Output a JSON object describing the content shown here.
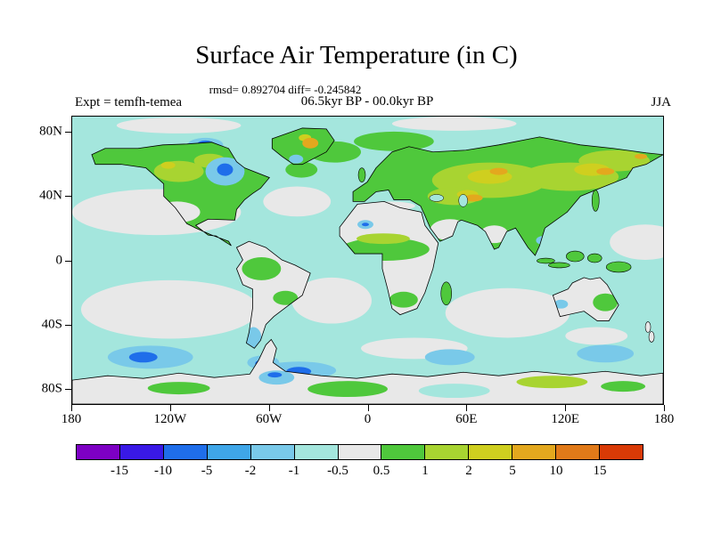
{
  "chart_data": {
    "type": "heatmap",
    "title": "Surface Air Temperature (in C)",
    "stats_line": "rmsd= 0.892704 diff= -0.245842",
    "subtitle": "06.5kyr BP - 00.0kyr BP",
    "left_annotation": "Expt = temfh-temea",
    "right_annotation": "JJA",
    "projection": "equirectangular",
    "x_axis_unit": "longitude",
    "y_axis_unit": "latitude",
    "x_ticks": [
      {
        "label": "180",
        "lon": -180
      },
      {
        "label": "120W",
        "lon": -120
      },
      {
        "label": "60W",
        "lon": -60
      },
      {
        "label": "0",
        "lon": 0
      },
      {
        "label": "60E",
        "lon": 60
      },
      {
        "label": "120E",
        "lon": 120
      },
      {
        "label": "180",
        "lon": 180
      }
    ],
    "y_ticks": [
      {
        "label": "80N",
        "lat": 80
      },
      {
        "label": "40N",
        "lat": 40
      },
      {
        "label": "0",
        "lat": 0
      },
      {
        "label": "40S",
        "lat": -40
      },
      {
        "label": "80S",
        "lat": -80
      }
    ],
    "colorbar": {
      "units": "C",
      "levels": [
        -15,
        -10,
        -5,
        -2,
        -1,
        -0.5,
        0.5,
        1,
        2,
        5,
        10,
        15
      ],
      "labels": [
        "-15",
        "-10",
        "-5",
        "-2",
        "-1",
        "-0.5",
        "0.5",
        "1",
        "2",
        "5",
        "10",
        "15"
      ],
      "colors": [
        "#7d00c4",
        "#3919e6",
        "#1f6eea",
        "#3fa6e8",
        "#79c9e9",
        "#a4e6dd",
        "#e8e8e8",
        "#4fc83c",
        "#a8d431",
        "#cfcf1f",
        "#e3a81e",
        "#e17a19",
        "#d93a06"
      ]
    }
  }
}
